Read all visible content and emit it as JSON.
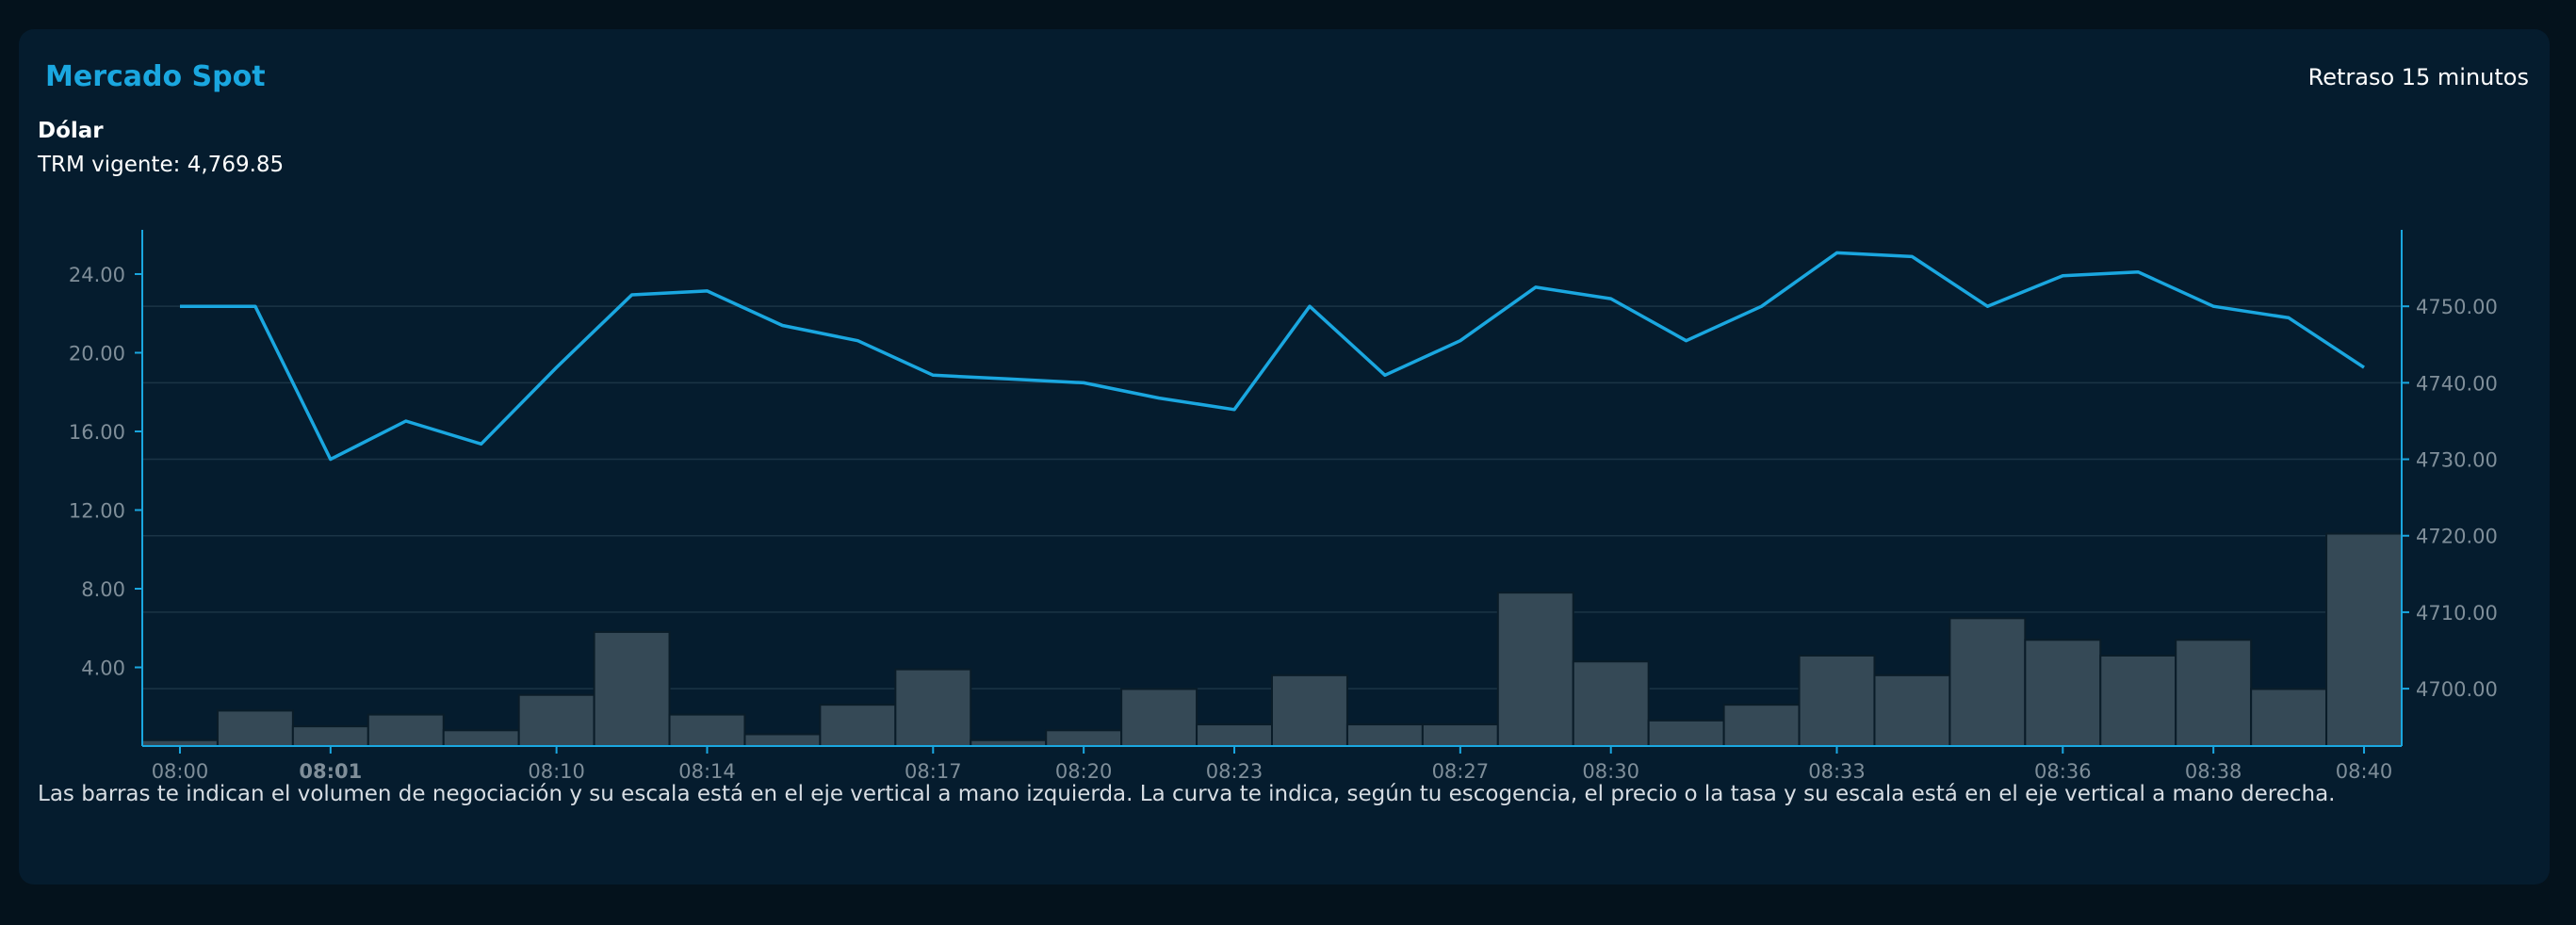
{
  "header": {
    "title": "Mercado Spot",
    "delay": "Retraso 15 minutos",
    "currency": "Dólar",
    "trm": "TRM vigente: 4,769.85"
  },
  "footnote": "Las barras te indican el volumen de negociación y su escala está en el eje vertical a mano izquierda. La curva te indica, según tu escogencia, el precio o la tasa y su escala está en el eje vertical a mano derecha.",
  "colors": {
    "line": "#1aa7e0",
    "bar": "#354956",
    "bar_stroke": "#0a1c28",
    "grid": "#1b3446",
    "axis": "#1aa7e0",
    "tick_text": "#7f8e99"
  },
  "chart_data": {
    "type": "bar+line",
    "x_tick_labels": [
      {
        "index": 0,
        "label": "08:00",
        "bold": false
      },
      {
        "index": 2,
        "label": "08:01",
        "bold": true
      },
      {
        "index": 5,
        "label": "08:10",
        "bold": false
      },
      {
        "index": 7,
        "label": "08:14",
        "bold": false
      },
      {
        "index": 10,
        "label": "08:17",
        "bold": false
      },
      {
        "index": 12,
        "label": "08:20",
        "bold": false
      },
      {
        "index": 14,
        "label": "08:23",
        "bold": false
      },
      {
        "index": 17,
        "label": "08:27",
        "bold": false
      },
      {
        "index": 19,
        "label": "08:30",
        "bold": false
      },
      {
        "index": 22,
        "label": "08:33",
        "bold": false
      },
      {
        "index": 25,
        "label": "08:36",
        "bold": false
      },
      {
        "index": 27,
        "label": "08:38",
        "bold": false
      },
      {
        "index": 29,
        "label": "08:40",
        "bold": false
      }
    ],
    "volume": [
      0.3,
      1.8,
      1.0,
      1.6,
      0.8,
      2.6,
      5.8,
      1.6,
      0.6,
      2.1,
      3.9,
      0.3,
      0.8,
      2.9,
      1.1,
      3.6,
      1.1,
      1.1,
      7.8,
      4.3,
      1.3,
      2.1,
      4.6,
      3.6,
      6.5,
      5.4,
      4.6,
      5.4,
      2.9,
      10.8
    ],
    "price": [
      4750.0,
      4750.0,
      4730.0,
      4735.0,
      4732.0,
      4742.0,
      4751.5,
      4752.0,
      4747.5,
      4745.5,
      4741.0,
      4740.5,
      4740.0,
      4738.0,
      4736.5,
      4750.0,
      4741.0,
      4745.5,
      4752.5,
      4751.0,
      4745.5,
      4750.0,
      4757.0,
      4756.5,
      4750.0,
      4754.0,
      4754.5,
      4750.0,
      4748.5,
      4742.0
    ],
    "y_left": {
      "min": 0,
      "max": 26.25,
      "ticks": [
        4.0,
        8.0,
        12.0,
        16.0,
        20.0,
        24.0
      ],
      "tick_labels": [
        "4.00",
        "8.00",
        "12.00",
        "16.00",
        "20.00",
        "24.00"
      ]
    },
    "y_right": {
      "min": 4692.5,
      "max": 4760.0,
      "ticks": [
        4700,
        4710,
        4720,
        4730,
        4740,
        4750
      ],
      "tick_labels": [
        "4700.00",
        "4710.00",
        "4720.00",
        "4730.00",
        "4740.00",
        "4750.00"
      ]
    },
    "grid": "horizontal, aligned to right axis"
  }
}
